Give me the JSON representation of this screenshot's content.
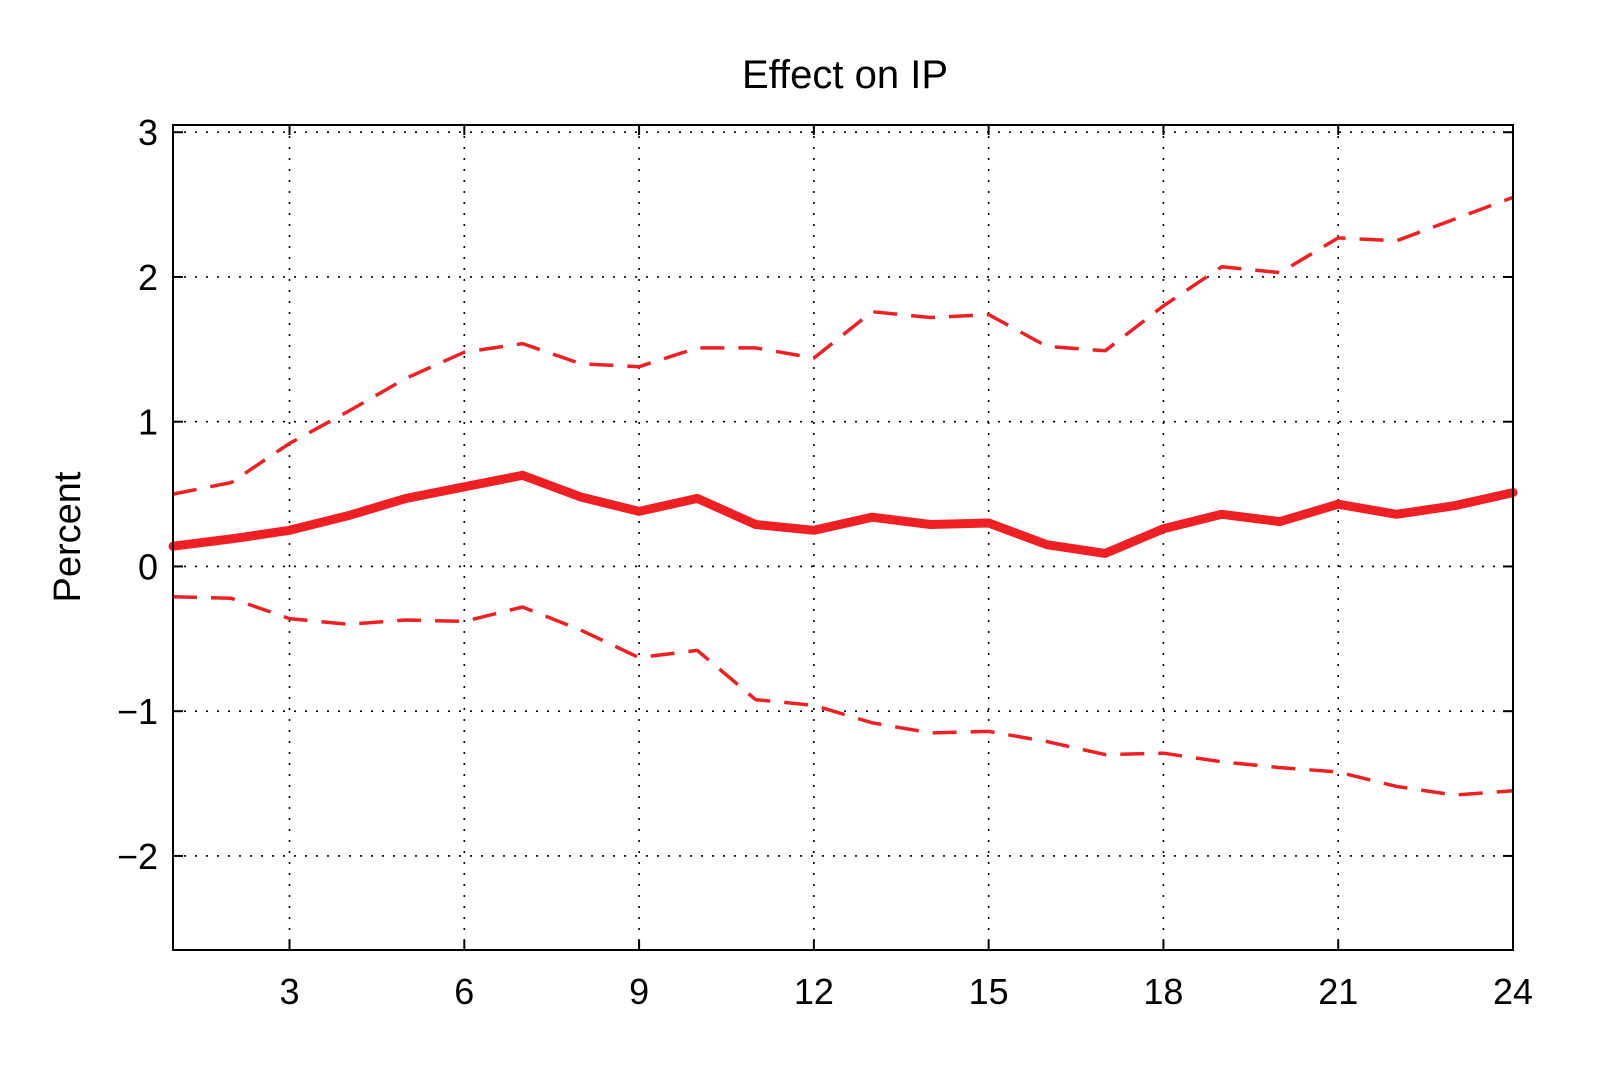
{
  "chart_data": {
    "type": "line",
    "title": "Effect on IP",
    "xlabel": "",
    "ylabel": "Percent",
    "xlim": [
      1,
      24
    ],
    "ylim": [
      -2.65,
      3.05
    ],
    "grid": true,
    "legend": "none",
    "xticks": [
      3,
      6,
      9,
      12,
      15,
      18,
      21,
      24
    ],
    "xtick_labels": [
      "3",
      "6",
      "9",
      "12",
      "15",
      "18",
      "21",
      "24"
    ],
    "yticks": [
      3,
      2,
      1,
      0,
      -1,
      -2
    ],
    "ytick_labels": [
      "3",
      "2",
      "1",
      "0",
      "−1",
      "−2"
    ],
    "x": [
      1,
      2,
      3,
      4,
      5,
      6,
      7,
      8,
      9,
      10,
      11,
      12,
      13,
      14,
      15,
      16,
      17,
      18,
      19,
      20,
      21,
      22,
      23,
      24
    ],
    "series": [
      {
        "style": "solid",
        "color": "#ee2024",
        "values": [
          0.14,
          0.19,
          0.25,
          0.35,
          0.47,
          0.55,
          0.63,
          0.48,
          0.38,
          0.47,
          0.29,
          0.25,
          0.34,
          0.29,
          0.3,
          0.15,
          0.09,
          0.26,
          0.36,
          0.31,
          0.43,
          0.36,
          0.42,
          0.51
        ]
      },
      {
        "style": "dashed",
        "color": "#ee2024",
        "values": [
          0.5,
          0.58,
          0.85,
          1.07,
          1.3,
          1.48,
          1.54,
          1.4,
          1.38,
          1.51,
          1.51,
          1.44,
          1.76,
          1.72,
          1.74,
          1.52,
          1.49,
          1.8,
          2.07,
          2.03,
          2.27,
          2.25,
          2.4,
          2.55
        ]
      },
      {
        "style": "dashed",
        "color": "#ee2024",
        "values": [
          -0.21,
          -0.22,
          -0.36,
          -0.4,
          -0.37,
          -0.38,
          -0.28,
          -0.44,
          -0.63,
          -0.58,
          -0.92,
          -0.96,
          -1.08,
          -1.15,
          -1.14,
          -1.21,
          -1.3,
          -1.29,
          -1.35,
          -1.39,
          -1.42,
          -1.52,
          -1.58,
          -1.55
        ]
      }
    ]
  }
}
